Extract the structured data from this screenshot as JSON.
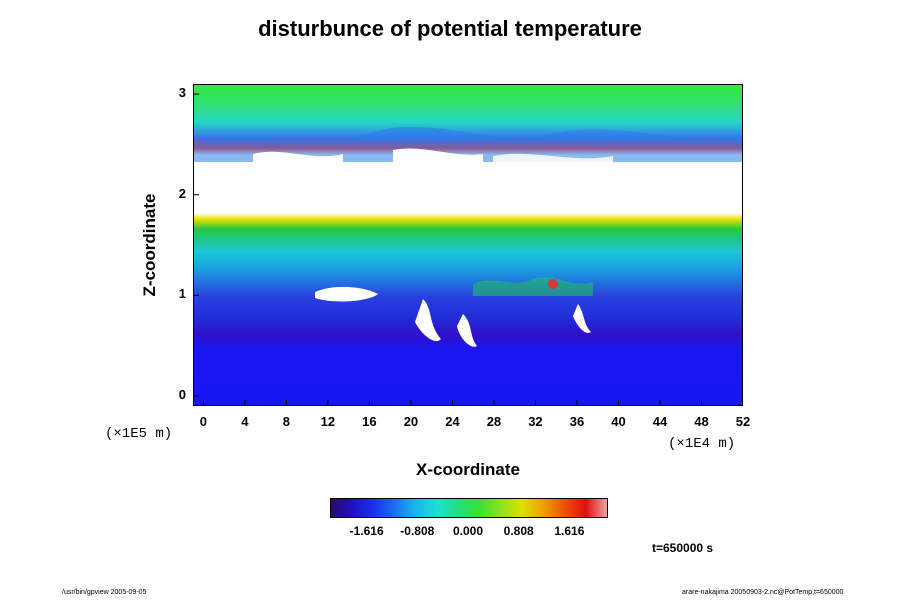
{
  "chart_data": {
    "type": "heatmap",
    "title": "disturbunce of potential temperature",
    "xlabel": "X-coordinate",
    "ylabel": "Z-coordinate",
    "x_scale_note": "(×1E4 m)",
    "y_scale_note": "(×1E5 m)",
    "xlim": [
      -1,
      52
    ],
    "ylim": [
      -0.1,
      3.1
    ],
    "x_ticks": [
      "0",
      "4",
      "8",
      "12",
      "16",
      "20",
      "24",
      "28",
      "32",
      "36",
      "40",
      "44",
      "48",
      "52"
    ],
    "y_ticks": [
      "0",
      "1",
      "2",
      "3"
    ],
    "colorbar": {
      "ticks": [
        "-1.616",
        "-0.808",
        "0.000",
        "0.808",
        "1.616"
      ],
      "range": [
        -2.2,
        2.2
      ]
    },
    "field_description_values": {
      "bands": [
        {
          "z_range": [
            0,
            0.85
          ],
          "value": -1.9
        },
        {
          "z_range": [
            0.85,
            1.3
          ],
          "value": -1.5
        },
        {
          "z_range": [
            1.3,
            1.7
          ],
          "value": -0.5
        },
        {
          "z_range": [
            1.7,
            1.8
          ],
          "value": 0.4
        },
        {
          "z_range": [
            1.8,
            2.35
          ],
          "value": "out-of-range (white)"
        },
        {
          "z_range": [
            2.35,
            2.6
          ],
          "value": -0.9
        },
        {
          "z_range": [
            2.6,
            3.0
          ],
          "value": -0.1
        }
      ]
    },
    "grid": false
  },
  "time_label": "t=650000 s",
  "footer_left": "/usr/bin/gpview 2005-09-05",
  "footer_right": "arare-nakajima 20050903-2.nc@PotTemp,t=650000"
}
